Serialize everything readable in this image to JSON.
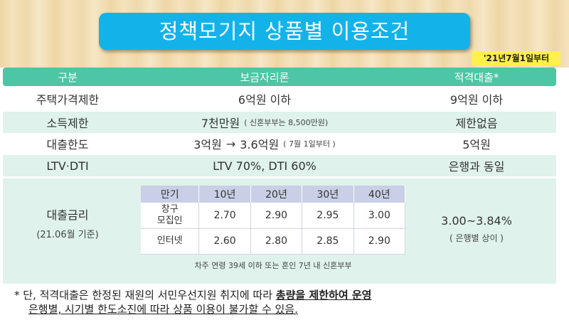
{
  "title": "정책모기지 상품별 이용조건",
  "date_badge": "'21년7월1일부터",
  "header": {
    "col1": "구분",
    "col2": "보금자리론",
    "col3": "적격대출*"
  },
  "rows": [
    {
      "label": "주택가격제한",
      "bogeum": "6억원 이하",
      "bogeum_note": "",
      "jeokgyeok": "9억원 이하"
    },
    {
      "label": "소득제한",
      "bogeum": "7천만원",
      "bogeum_note": "( 신혼부부는 8,500만원)",
      "jeokgyeok": "제한없음"
    },
    {
      "label": "대출한도",
      "bogeum_from": "3억원",
      "arrow": "→",
      "bogeum": "3.6억원",
      "bogeum_note": "( 7월 1일부터 )",
      "jeokgyeok": "5억원"
    },
    {
      "label": "LTV·DTI",
      "bogeum": "LTV 70%, DTI 60%",
      "bogeum_note": "",
      "jeokgyeok": "은행과 동일"
    }
  ],
  "rate": {
    "label": "대출금리",
    "label_sub": "(21.06월 기준)",
    "table_headers": [
      "만기",
      "10년",
      "20년",
      "30년",
      "40년"
    ],
    "table_rows": [
      {
        "label": "창구\n모집인",
        "values": [
          "2.70",
          "2.90",
          "2.95",
          "3.00"
        ]
      },
      {
        "label": "인터넷",
        "values": [
          "2.60",
          "2.80",
          "2.85",
          "2.90"
        ]
      }
    ],
    "table_note": "차주 연령 39세 이하 또는 혼인 7년 내 신혼부부",
    "jeokgyeok": "3.00~3.84%",
    "jeokgyeok_sub": "( 은행별 상이 )"
  },
  "footer": {
    "prefix": "* 단, 적격대출은 한정된 재원의 서민우선지원 취지에 따라 ",
    "emphasis": "총량을 제한하여 운영",
    "line2": "은행별, 시기별 한도소진에 따라 상품 이용이 불가할 수 있음."
  }
}
